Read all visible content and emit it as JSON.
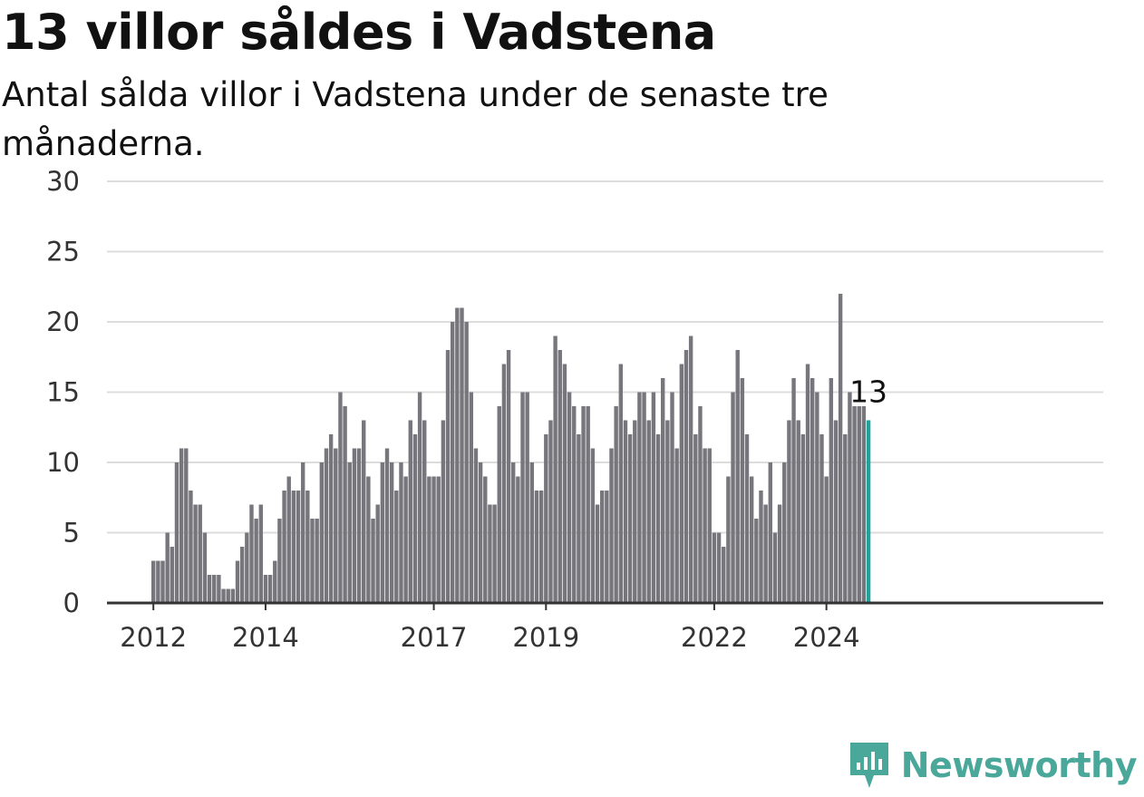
{
  "title": "13 villor såldes i Vadstena",
  "subtitle": "Antal sålda villor i Vadstena under de senaste tre månaderna.",
  "brand": {
    "name": "Newsworthy",
    "icon": "newsworthy-logo-icon",
    "color": "#4aa89a"
  },
  "colors": {
    "bar": "#77767c",
    "highlight": "#1fa39a",
    "grid": "#dcdcdc",
    "axis": "#333333"
  },
  "chart_data": {
    "type": "bar",
    "title": "13 villor såldes i Vadstena",
    "subtitle": "Antal sålda villor i Vadstena under de senaste tre månaderna.",
    "xlabel": "",
    "ylabel": "",
    "ylim": [
      0,
      30
    ],
    "yticks": [
      0,
      5,
      10,
      15,
      20,
      25,
      30
    ],
    "grid": true,
    "x_start": "2012-01",
    "x_end": "2024-09",
    "xtick_labels": [
      {
        "label": "2012",
        "date": "2012-01"
      },
      {
        "label": "2014",
        "date": "2014-01"
      },
      {
        "label": "2017",
        "date": "2017-01"
      },
      {
        "label": "2019",
        "date": "2019-01"
      },
      {
        "label": "2022",
        "date": "2022-01"
      },
      {
        "label": "2024",
        "date": "2024-01"
      }
    ],
    "values": [
      3,
      3,
      3,
      5,
      4,
      10,
      11,
      11,
      8,
      7,
      7,
      5,
      2,
      2,
      2,
      1,
      1,
      1,
      3,
      4,
      5,
      7,
      6,
      7,
      2,
      2,
      3,
      6,
      8,
      9,
      8,
      8,
      10,
      8,
      6,
      6,
      10,
      11,
      12,
      11,
      15,
      14,
      10,
      11,
      11,
      13,
      9,
      6,
      7,
      10,
      11,
      10,
      8,
      10,
      9,
      13,
      12,
      15,
      13,
      9,
      9,
      9,
      13,
      18,
      20,
      21,
      21,
      20,
      15,
      11,
      10,
      9,
      7,
      7,
      14,
      17,
      18,
      10,
      9,
      15,
      15,
      10,
      8,
      8,
      12,
      13,
      19,
      18,
      17,
      15,
      14,
      12,
      14,
      14,
      11,
      7,
      8,
      8,
      11,
      14,
      17,
      13,
      12,
      13,
      15,
      15,
      13,
      15,
      12,
      16,
      13,
      15,
      11,
      17,
      18,
      19,
      12,
      14,
      11,
      11,
      5,
      5,
      4,
      9,
      15,
      18,
      16,
      12,
      9,
      6,
      8,
      7,
      10,
      5,
      7,
      10,
      13,
      16,
      13,
      12,
      17,
      16,
      15,
      12,
      9,
      16,
      13,
      22,
      12,
      15,
      14,
      14,
      14,
      13
    ],
    "highlight_last": true,
    "last_value_label": "13"
  }
}
